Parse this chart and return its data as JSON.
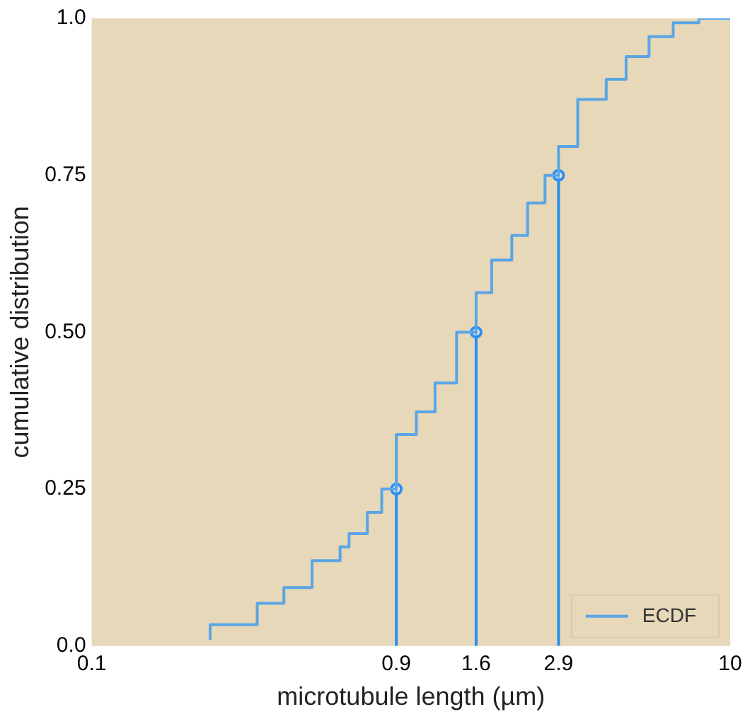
{
  "chart_data": {
    "type": "step",
    "xlabel": "microtubule length (µm)",
    "ylabel": "cumulative distribution",
    "log": "x",
    "xlim": [
      0.1,
      10
    ],
    "xticks": [
      0.1,
      0.9,
      1.6,
      2.9,
      10
    ],
    "ylim": [
      0,
      1
    ],
    "yticks": [
      {
        "value": 0,
        "label": "0.0"
      },
      0.25,
      {
        "value": 0.5,
        "label": "0.50"
      },
      0.75,
      {
        "value": 1,
        "label": "1.0"
      }
    ],
    "grid": false,
    "legend": "bottom right",
    "series": [
      {
        "name": "ECDF",
        "color": "#5aa5e6",
        "marker": "none",
        "x": [
          0.235,
          0.33,
          0.4,
          0.49,
          0.6,
          0.64,
          0.73,
          0.81,
          0.9,
          1.04,
          1.19,
          1.39,
          1.6,
          1.79,
          2.07,
          2.32,
          2.63,
          2.9,
          3.33,
          4.09,
          4.72,
          5.57,
          6.63,
          7.98,
          8.75,
          10
        ],
        "values": [
          0.01,
          0.034,
          0.068,
          0.093,
          0.136,
          0.158,
          0.179,
          0.213,
          0.25,
          0.337,
          0.373,
          0.419,
          0.5,
          0.563,
          0.615,
          0.654,
          0.706,
          0.75,
          0.796,
          0.871,
          0.903,
          0.939,
          0.971,
          0.993,
          1,
          1
        ]
      },
      {
        "type": "lollipop",
        "color": "#2b8ff0",
        "marker": "circle",
        "x": [
          0.9,
          1.6,
          2.9
        ],
        "values": [
          0.25,
          0.5,
          0.75
        ]
      }
    ]
  }
}
